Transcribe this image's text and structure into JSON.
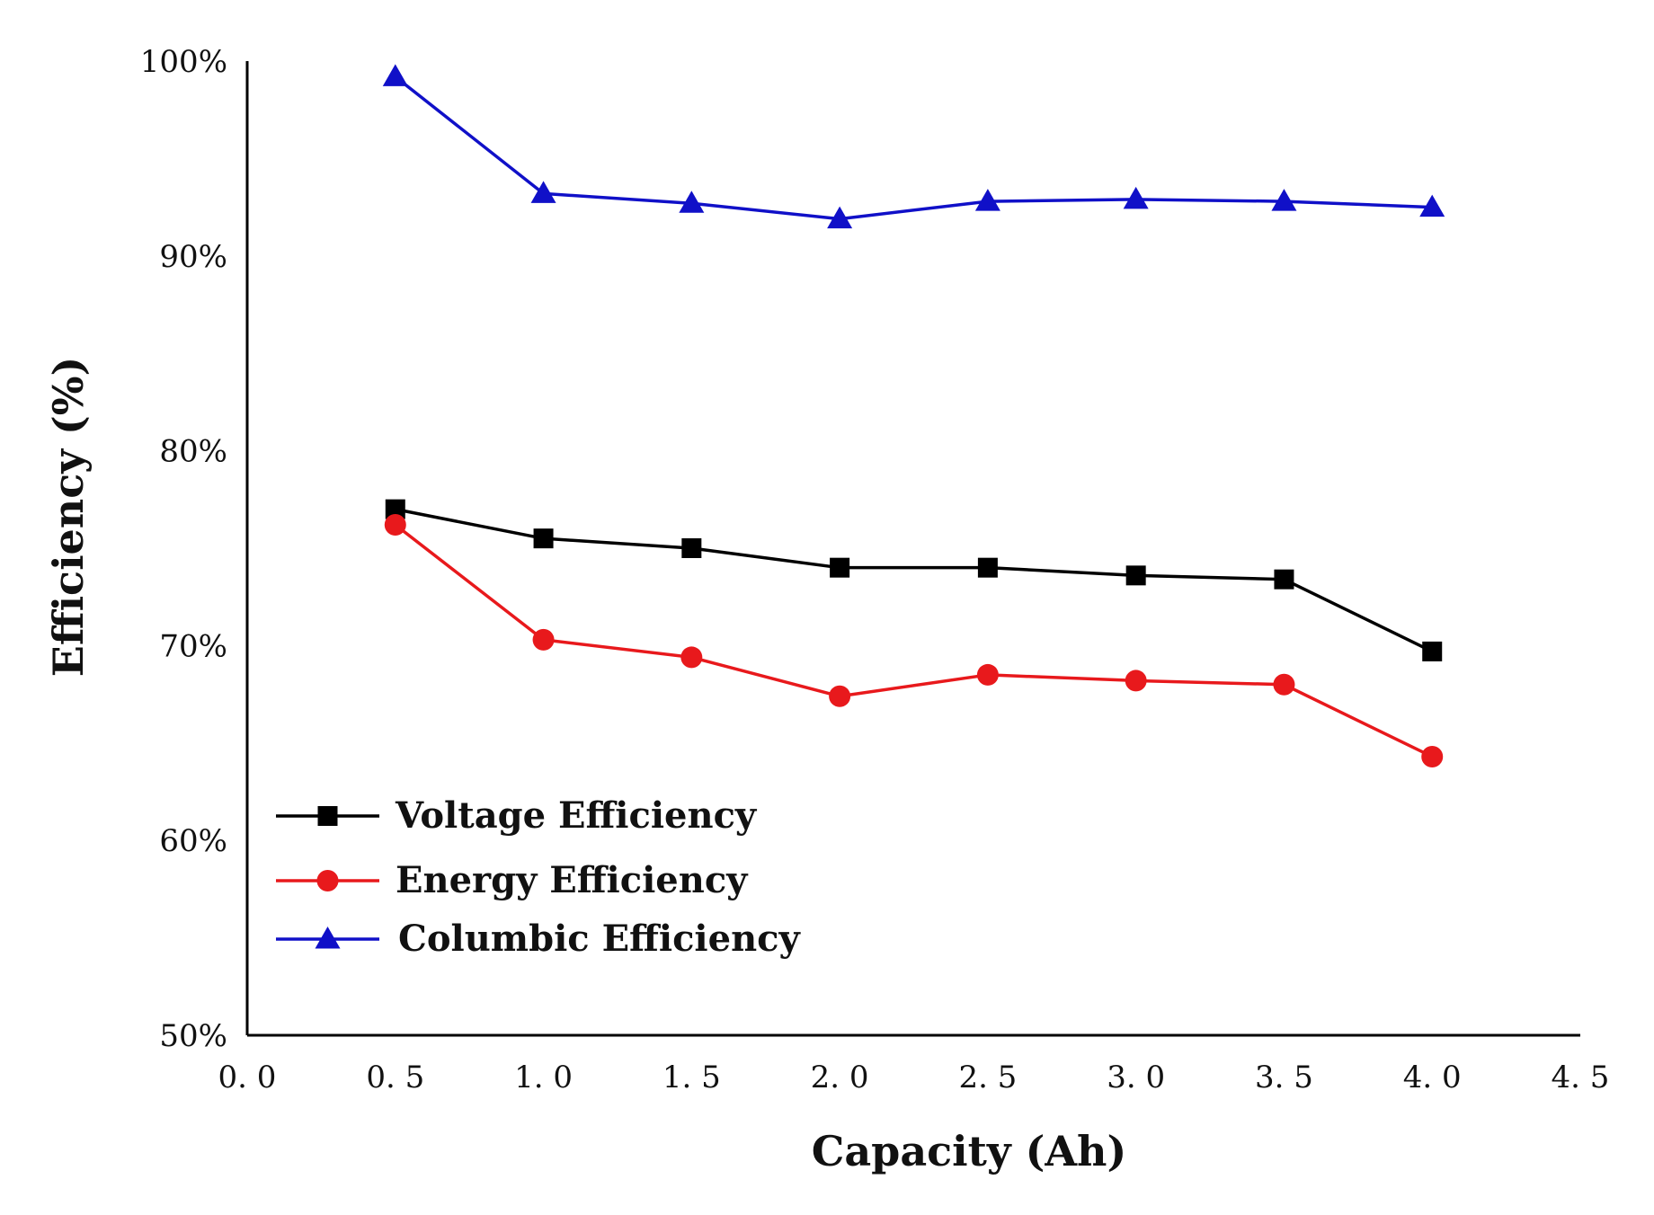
{
  "chart_data": {
    "type": "line",
    "title": "",
    "xlabel": "Capacity (Ah)",
    "ylabel": "Efficiency (%)",
    "xlim": [
      0.0,
      4.5
    ],
    "ylim": [
      50,
      100
    ],
    "x_ticks": [
      0.0,
      0.5,
      1.0,
      1.5,
      2.0,
      2.5,
      3.0,
      3.5,
      4.0,
      4.5
    ],
    "x_tick_labels": [
      "0. 0",
      "0. 5",
      "1. 0",
      "1. 5",
      "2. 0",
      "2. 5",
      "3. 0",
      "3. 5",
      "4. 0",
      "4. 5"
    ],
    "y_ticks": [
      50,
      60,
      70,
      80,
      90,
      100
    ],
    "y_tick_labels": [
      "50%",
      "60%",
      "70%",
      "80%",
      "90%",
      "100%"
    ],
    "grid": false,
    "legend_position": "bottom-left",
    "x": [
      0.5,
      1.0,
      1.5,
      2.0,
      2.5,
      3.0,
      3.5,
      4.0
    ],
    "series": [
      {
        "name": "Voltage Efficiency",
        "marker": "square",
        "color": "#000000",
        "values": [
          77.0,
          75.5,
          75.0,
          74.0,
          74.0,
          73.6,
          73.4,
          69.7
        ]
      },
      {
        "name": "Energy Efficiency",
        "marker": "circle",
        "color": "#e8191c",
        "values": [
          76.2,
          70.3,
          69.4,
          67.4,
          68.5,
          68.2,
          68.0,
          64.3
        ]
      },
      {
        "name": "Columbic Efficiency",
        "marker": "triangle",
        "color": "#1010c8",
        "values": [
          99.2,
          93.2,
          92.7,
          91.9,
          92.8,
          92.9,
          92.8,
          92.5
        ]
      }
    ]
  }
}
